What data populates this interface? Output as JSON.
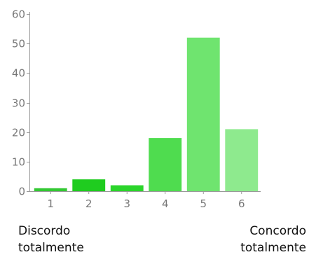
{
  "chart_data": {
    "type": "bar",
    "categories": [
      "1",
      "2",
      "3",
      "4",
      "5",
      "6"
    ],
    "values": [
      1,
      4,
      2,
      18,
      52,
      21
    ],
    "colors": [
      "#33c833",
      "#1fcc1f",
      "#2bd52b",
      "#4fdc4f",
      "#6fe46f",
      "#8eea8e"
    ],
    "ylim": [
      0,
      60
    ],
    "yticks": [
      0,
      10,
      20,
      30,
      40,
      50,
      60
    ],
    "grid": false,
    "axis_color": "#999999"
  },
  "captions": {
    "left": [
      "Discordo",
      "totalmente"
    ],
    "right": [
      "Concordo",
      "totalmente"
    ]
  }
}
